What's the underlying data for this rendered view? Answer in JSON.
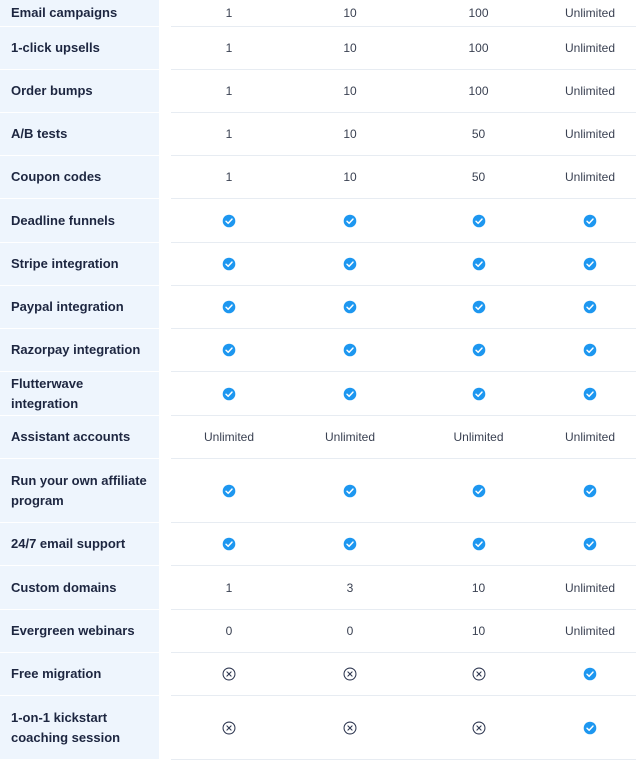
{
  "rows": [
    {
      "label": "Email campaigns",
      "values": [
        "1",
        "10",
        "100",
        "Unlimited"
      ]
    },
    {
      "label": "1-click upsells",
      "values": [
        "1",
        "10",
        "100",
        "Unlimited"
      ]
    },
    {
      "label": "Order bumps",
      "values": [
        "1",
        "10",
        "100",
        "Unlimited"
      ]
    },
    {
      "label": "A/B tests",
      "values": [
        "1",
        "10",
        "50",
        "Unlimited"
      ]
    },
    {
      "label": "Coupon codes",
      "values": [
        "1",
        "10",
        "50",
        "Unlimited"
      ]
    },
    {
      "label": "Deadline funnels",
      "values": [
        "check",
        "check",
        "check",
        "check"
      ]
    },
    {
      "label": "Stripe integration",
      "values": [
        "check",
        "check",
        "check",
        "check"
      ]
    },
    {
      "label": "Paypal integration",
      "values": [
        "check",
        "check",
        "check",
        "check"
      ]
    },
    {
      "label": "Razorpay integration",
      "values": [
        "check",
        "check",
        "check",
        "check"
      ]
    },
    {
      "label": "Flutterwave integration",
      "values": [
        "check",
        "check",
        "check",
        "check"
      ]
    },
    {
      "label": "Assistant accounts",
      "values": [
        "Unlimited",
        "Unlimited",
        "Unlimited",
        "Unlimited"
      ]
    },
    {
      "label": "Run your own affiliate program",
      "values": [
        "check",
        "check",
        "check",
        "check"
      ]
    },
    {
      "label": "24/7 email support",
      "values": [
        "check",
        "check",
        "check",
        "check"
      ]
    },
    {
      "label": "Custom domains",
      "values": [
        "1",
        "3",
        "10",
        "Unlimited"
      ]
    },
    {
      "label": "Evergreen webinars",
      "values": [
        "0",
        "0",
        "10",
        "Unlimited"
      ]
    },
    {
      "label": "Free migration",
      "values": [
        "cross",
        "cross",
        "cross",
        "check"
      ]
    },
    {
      "label": "1-on-1 kickstart coaching session",
      "values": [
        "cross",
        "cross",
        "cross",
        "check"
      ]
    }
  ],
  "icons": {
    "check": "check-circle-icon",
    "cross": "x-circle-icon"
  },
  "colors": {
    "check": "#1d97f0",
    "cross": "#2d3650",
    "label_bg": "#eef5fd"
  }
}
